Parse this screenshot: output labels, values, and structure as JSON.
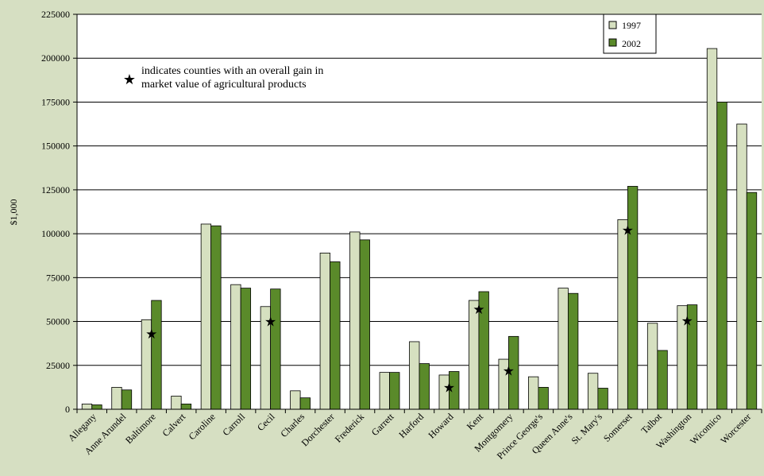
{
  "colors": {
    "background": "#d6dfc2",
    "plot_area": "#ffffff",
    "series_1997": "#d6e0c0",
    "series_2002": "#5a8a2a",
    "gridline": "#000000"
  },
  "annotation": {
    "marker": "★",
    "line1": "indicates counties with an overall gain in",
    "line2": "market value of agricultural products"
  },
  "chart_data": {
    "type": "bar",
    "title": "",
    "xlabel": "",
    "ylabel": "$1,000",
    "ylim": [
      0,
      225000
    ],
    "yticks": [
      0,
      25000,
      50000,
      75000,
      100000,
      125000,
      150000,
      175000,
      200000,
      225000
    ],
    "grid": true,
    "legend_position": "top-right",
    "categories": [
      "Allegany",
      "Anne Arundel",
      "Baltimore",
      "Calvert",
      "Caroline",
      "Carroll",
      "Cecil",
      "Charles",
      "Dorchester",
      "Frederick",
      "Garrett",
      "Harford",
      "Howard",
      "Kent",
      "Montgomery",
      "Prince George's",
      "Queen Anne's",
      "St. Mary's",
      "Somerset",
      "Talbot",
      "Washington",
      "Wicomico",
      "Worcester"
    ],
    "series": [
      {
        "name": "1997",
        "values": [
          3000,
          12500,
          51000,
          7500,
          105500,
          71000,
          58500,
          10500,
          89000,
          101000,
          21000,
          38500,
          19500,
          62000,
          28500,
          18500,
          69000,
          20500,
          108000,
          49000,
          59000,
          205500,
          162500
        ]
      },
      {
        "name": "2002",
        "values": [
          2500,
          11000,
          62000,
          3000,
          104500,
          69000,
          68500,
          6500,
          84000,
          96500,
          21000,
          26000,
          21500,
          67000,
          41500,
          12500,
          66000,
          12000,
          127000,
          33500,
          59500,
          175000,
          123500
        ]
      }
    ],
    "gain_markers": [
      {
        "category": "Baltimore",
        "value": 43000
      },
      {
        "category": "Cecil",
        "value": 50000
      },
      {
        "category": "Howard",
        "value": 12500
      },
      {
        "category": "Kent",
        "value": 57000
      },
      {
        "category": "Montgomery",
        "value": 22000
      },
      {
        "category": "Somerset",
        "value": 102000
      },
      {
        "category": "Washington",
        "value": 50500
      }
    ]
  }
}
